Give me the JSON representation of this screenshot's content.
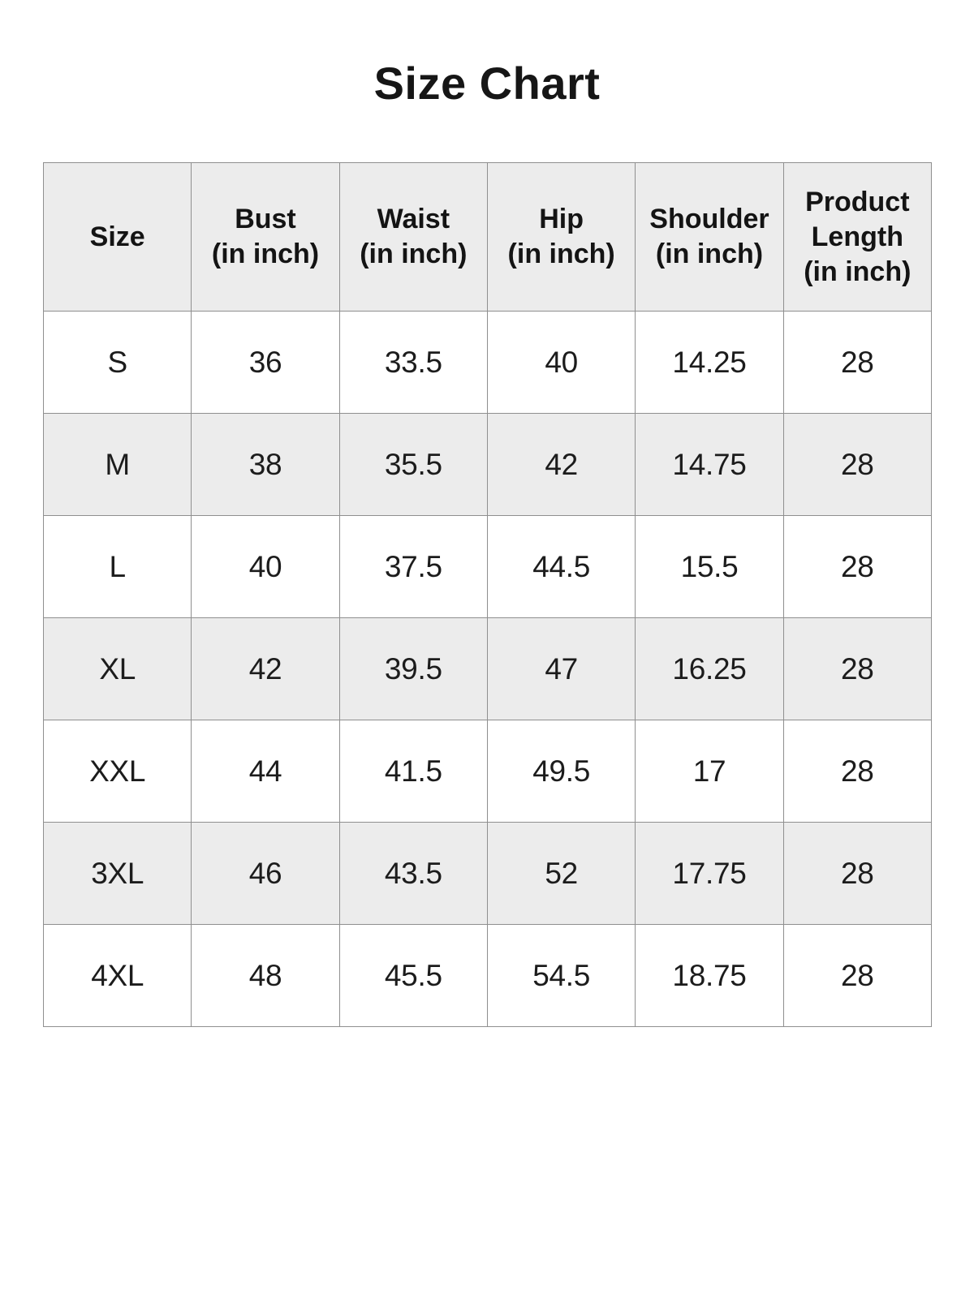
{
  "title": "Size Chart",
  "colors": {
    "background": "#ffffff",
    "header_and_alt_row_bg": "#ececec",
    "grid_border": "#8f8f8f",
    "text": "#1c1c1c"
  },
  "table": {
    "columns": [
      {
        "label": "Size",
        "unit": ""
      },
      {
        "label": "Bust",
        "unit": "(in inch)"
      },
      {
        "label": "Waist",
        "unit": "(in inch)"
      },
      {
        "label": "Hip",
        "unit": "(in inch)"
      },
      {
        "label": "Shoulder",
        "unit": "(in inch)"
      },
      {
        "label": "Product Length",
        "unit": "(in inch)"
      }
    ],
    "rows": [
      [
        "S",
        "36",
        "33.5",
        "40",
        "14.25",
        "28"
      ],
      [
        "M",
        "38",
        "35.5",
        "42",
        "14.75",
        "28"
      ],
      [
        "L",
        "40",
        "37.5",
        "44.5",
        "15.5",
        "28"
      ],
      [
        "XL",
        "42",
        "39.5",
        "47",
        "16.25",
        "28"
      ],
      [
        "XXL",
        "44",
        "41.5",
        "49.5",
        "17",
        "28"
      ],
      [
        "3XL",
        "46",
        "43.5",
        "52",
        "17.75",
        "28"
      ],
      [
        "4XL",
        "48",
        "45.5",
        "54.5",
        "18.75",
        "28"
      ]
    ]
  },
  "chart_data": {
    "type": "table",
    "title": "Size Chart",
    "columns": [
      "Size",
      "Bust (in inch)",
      "Waist (in inch)",
      "Hip (in inch)",
      "Shoulder (in inch)",
      "Product Length (in inch)"
    ],
    "rows": [
      [
        "S",
        36,
        33.5,
        40,
        14.25,
        28
      ],
      [
        "M",
        38,
        35.5,
        42,
        14.75,
        28
      ],
      [
        "L",
        40,
        37.5,
        44.5,
        15.5,
        28
      ],
      [
        "XL",
        42,
        39.5,
        47,
        16.25,
        28
      ],
      [
        "XXL",
        44,
        41.5,
        49.5,
        17,
        28
      ],
      [
        "3XL",
        46,
        43.5,
        52,
        17.75,
        28
      ],
      [
        "4XL",
        48,
        45.5,
        54.5,
        18.75,
        28
      ]
    ],
    "layout": {
      "header_background": "#ececec",
      "alternating_row_background": [
        "#ffffff",
        "#ececec"
      ],
      "grid": true
    }
  }
}
